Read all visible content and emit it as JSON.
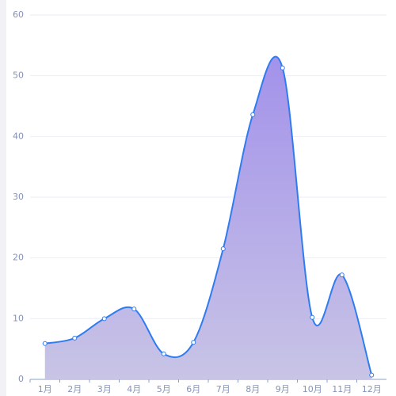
{
  "chart_data": {
    "type": "line",
    "categories": [
      "1月",
      "2月",
      "3月",
      "4月",
      "5月",
      "6月",
      "7月",
      "8月",
      "9月",
      "10月",
      "11月",
      "12月"
    ],
    "values": [
      5.9,
      6.8,
      10.0,
      11.6,
      4.2,
      6.1,
      21.5,
      43.6,
      51.3,
      10.2,
      17.2,
      0.7
    ],
    "color": "#2f7cf0",
    "area_colors": [
      "#a392ea",
      "#c8c4e6"
    ],
    "ylim": [
      0,
      60
    ],
    "yticks": [
      0,
      10,
      20,
      30,
      40,
      50,
      60
    ],
    "grid": true,
    "smooth": true
  }
}
